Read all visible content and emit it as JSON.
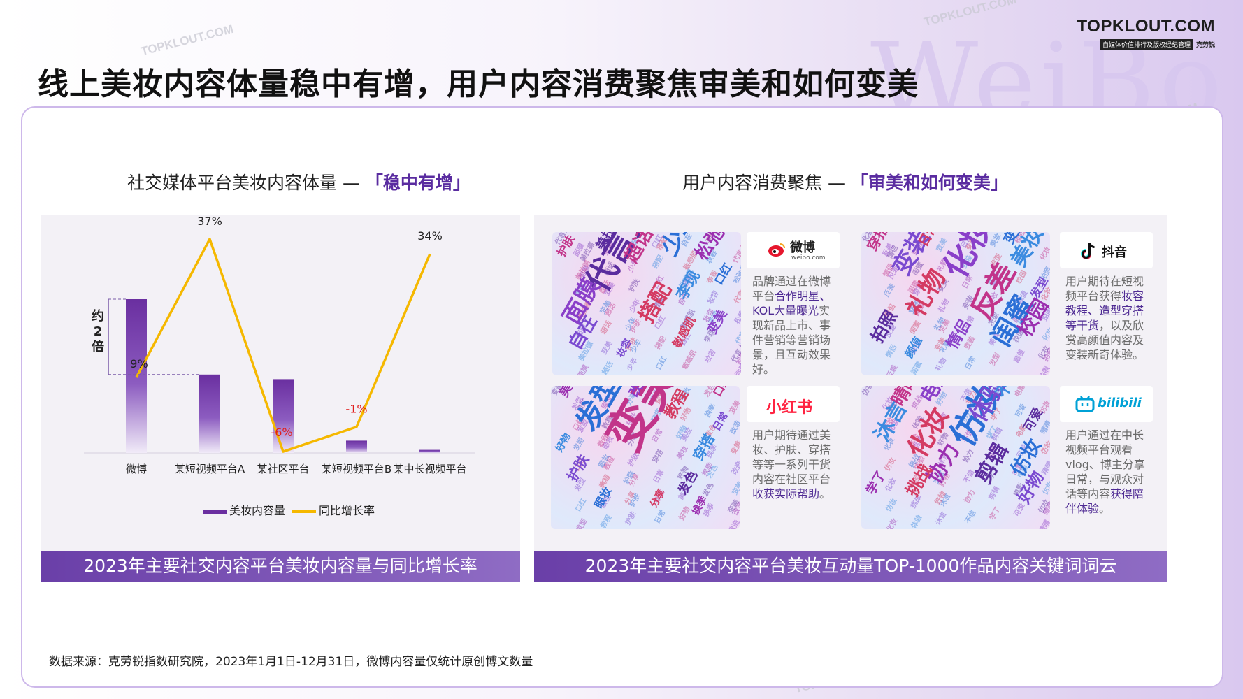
{
  "header": {
    "title": "线上美妆内容体量稳中有增，用户内容消费聚焦审美和如何变美",
    "logo": "TOPKLOUT.COM",
    "logo_tagline": "自媒体价值排行及版权经纪管理",
    "logo_brand": "克劳锐",
    "background_word": "WeiBo"
  },
  "watermark_text": "TOPKLOUT.COM",
  "left_section": {
    "title_prefix": "社交媒体平台美妆内容体量 —",
    "title_emphasis": "「稳中有增」",
    "annotation_lines": [
      "约",
      "2",
      "倍"
    ],
    "footer": "2023年主要社交内容平台美妆内容量与同比增长率"
  },
  "chart_data": {
    "type": "bar",
    "categories": [
      "微博",
      "某短视频平台A",
      "某社区平台",
      "某短视频平台B",
      "某中长视频平台"
    ],
    "series": [
      {
        "name": "美妆内容量",
        "type": "bar",
        "values": [
          100,
          51,
          48,
          8,
          2
        ],
        "color": "#6a2fa0"
      },
      {
        "name": "同比增长率",
        "type": "line",
        "values": [
          9,
          37,
          -6,
          -1,
          34
        ],
        "labels": [
          "9%",
          "37%",
          "-6%",
          "-1%",
          "34%"
        ],
        "color": "#f5b800"
      }
    ],
    "negative_label_color": "#e01d1d"
  },
  "right_section": {
    "title_prefix": "用户内容消费聚焦 —",
    "title_emphasis": "「审美和如何变美」",
    "footer": "2023年主要社交内容平台美妆互动量TOP-1000作品内容关键词词云",
    "platforms": [
      {
        "name": "微博",
        "sub": "weibo.com",
        "icon": "weibo-icon",
        "color": "#e6162d",
        "desc_parts": [
          {
            "text": "品牌通过在微博平台",
            "hl": false
          },
          {
            "text": "合作明星、KOL大量曝光",
            "hl": true
          },
          {
            "text": "实现新品上市、事件营销等营销场景，且互动效果好。",
            "hl": false
          }
        ],
        "words": [
          "代言人",
          "面膜",
          "超话",
          "少年",
          "搭配",
          "自在",
          "李现",
          "松弛感",
          "美拉德",
          "变美",
          "护肤",
          "口红",
          "敏感肌",
          "妆容"
        ]
      },
      {
        "name": "抖音",
        "icon": "douyin-icon",
        "color": "#111111",
        "desc_parts": [
          {
            "text": "用户期待在短视频平台获得",
            "hl": false
          },
          {
            "text": "妆容教程、造型穿搭等干货",
            "hl": true
          },
          {
            "text": "，以及欣赏高颜值内容及变装新奇体验。",
            "hl": false
          }
        ],
        "words": [
          "化妆",
          "反差",
          "闺蜜",
          "礼物",
          "变装",
          "美妆",
          "校园",
          "拍照",
          "情侣",
          "穿搭",
          "变美",
          "日常",
          "发型",
          "颜值"
        ]
      },
      {
        "name": "小红书",
        "icon": "xiaohongshu-icon",
        "color": "#ff2442",
        "desc_parts": [
          {
            "text": "用户期待通过美妆、护肤、穿搭等等一系列干货内容在社区平台",
            "hl": false
          },
          {
            "text": "收获实际帮助",
            "hl": true
          },
          {
            "text": "。",
            "hl": false
          }
        ],
        "words": [
          "变美",
          "发型",
          "教程",
          "护肤",
          "穿搭",
          "美妆",
          "发色",
          "改造",
          "口红",
          "眼妆",
          "分享",
          "日常",
          "好物",
          "换季"
        ]
      },
      {
        "name": "bilibili",
        "icon": "bilibili-icon",
        "color": "#00a1d6",
        "desc_parts": [
          {
            "text": "用户通过在中长视频平台观看vlog、博主分享日常，与观众对话等内容",
            "hl": false
          },
          {
            "text": "获得陪伴体验",
            "hl": true
          },
          {
            "text": "。",
            "hl": false
          }
        ],
        "words": [
          "仿妆",
          "化妆",
          "体验",
          "沐言",
          "协力",
          "剪辑",
          "电影",
          "晴晴",
          "仿妆",
          "挑战",
          "好物",
          "不信",
          "学了",
          "可爱"
        ]
      }
    ]
  },
  "source": "数据来源：克劳锐指数研究院，2023年1月1日-12月31日，微博内容量仅统计原创博文数量"
}
